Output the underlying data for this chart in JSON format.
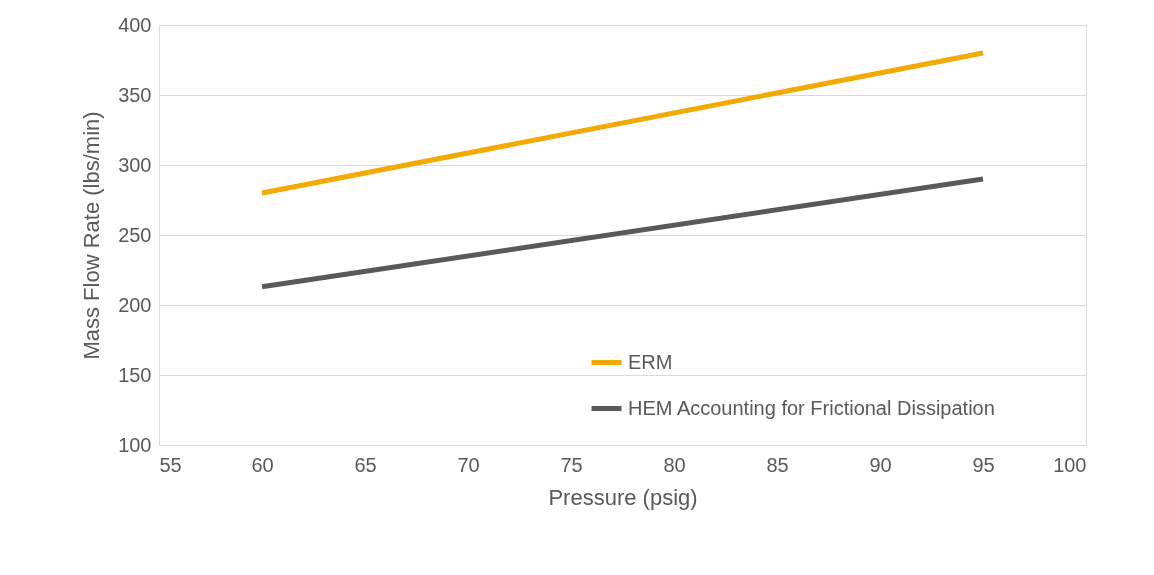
{
  "chart_data": {
    "type": "line",
    "xlabel": "Pressure (psig)",
    "ylabel": "Mass Flow Rate (lbs/min)",
    "x": [
      60,
      95
    ],
    "series": [
      {
        "name": "ERM",
        "color": "#f2a900",
        "values": [
          280,
          380
        ]
      },
      {
        "name": "HEM Accounting for Frictional Dissipation",
        "color": "#595959",
        "values": [
          213,
          290
        ]
      }
    ],
    "xlim": [
      55,
      100
    ],
    "xticks": [
      55,
      60,
      65,
      70,
      75,
      80,
      85,
      90,
      95,
      100
    ],
    "ylim": [
      100,
      400
    ],
    "yticks": [
      100,
      150,
      200,
      250,
      300,
      350,
      400
    ],
    "grid": "y",
    "legend": "bottom",
    "marker": "none",
    "line_style": "solid"
  }
}
